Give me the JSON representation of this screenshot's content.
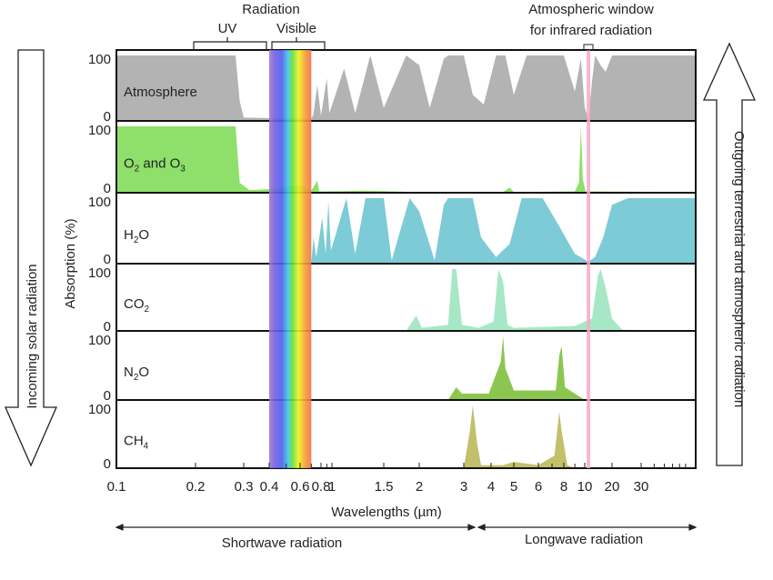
{
  "chart_data": {
    "type": "area",
    "title": "Radiation",
    "xlabel": "Wavelengths (µm)",
    "ylabel": "Absorption (%)",
    "x_scale": "log",
    "x_ticks": [
      "0.1",
      "0.2",
      "0.3",
      "0.4",
      "0.6",
      "0.8",
      "1",
      "1.5",
      "2",
      "3",
      "4",
      "5",
      "6",
      "8",
      "10",
      "20",
      "30"
    ],
    "x_tick_values": [
      0.1,
      0.2,
      0.3,
      0.4,
      0.6,
      0.8,
      1,
      1.5,
      2,
      3,
      4,
      5,
      6,
      8,
      10,
      20,
      30
    ],
    "ylim": [
      0,
      100
    ],
    "y_ticks": [
      "0",
      "100"
    ],
    "bands": {
      "uv": {
        "label": "UV",
        "range": [
          0.2,
          0.4
        ]
      },
      "visible": {
        "label": "Visible",
        "range": [
          0.4,
          0.7
        ]
      },
      "window": {
        "label": "Atmospheric window for infrared radiation",
        "label_line1": "Atmospheric window",
        "label_line2": "for infrared radiation",
        "range": [
          10.5,
          11.5
        ],
        "color": "#f7a8c8"
      }
    },
    "series": [
      {
        "name": "Atmosphere",
        "label_parts": [
          "Atmosphere"
        ],
        "color": "#b3b3b3",
        "points": [
          [
            0.1,
            100
          ],
          [
            0.28,
            100
          ],
          [
            0.29,
            30
          ],
          [
            0.3,
            5
          ],
          [
            0.7,
            3
          ],
          [
            0.72,
            10
          ],
          [
            0.76,
            55
          ],
          [
            0.8,
            8
          ],
          [
            0.9,
            65
          ],
          [
            0.95,
            12
          ],
          [
            1.1,
            80
          ],
          [
            1.2,
            12
          ],
          [
            1.35,
            100
          ],
          [
            1.5,
            20
          ],
          [
            1.8,
            100
          ],
          [
            2.0,
            85
          ],
          [
            2.2,
            20
          ],
          [
            2.5,
            95
          ],
          [
            2.6,
            100
          ],
          [
            3.0,
            100
          ],
          [
            3.3,
            40
          ],
          [
            3.7,
            25
          ],
          [
            4.2,
            100
          ],
          [
            4.6,
            100
          ],
          [
            5.0,
            40
          ],
          [
            5.5,
            100
          ],
          [
            8,
            100
          ],
          [
            9,
            45
          ],
          [
            9.6,
            95
          ],
          [
            10,
            20
          ],
          [
            11,
            3
          ],
          [
            12,
            60
          ],
          [
            13,
            100
          ],
          [
            15,
            85
          ],
          [
            17,
            75
          ],
          [
            20,
            100
          ],
          [
            100,
            100
          ]
        ]
      },
      {
        "name": "O2 and O3",
        "label_parts": [
          "O",
          "2",
          " and O",
          "3"
        ],
        "color": "#8ee06a",
        "points": [
          [
            0.1,
            100
          ],
          [
            0.28,
            100
          ],
          [
            0.29,
            15
          ],
          [
            0.32,
            4
          ],
          [
            0.45,
            6
          ],
          [
            0.6,
            12
          ],
          [
            0.7,
            3
          ],
          [
            0.76,
            18
          ],
          [
            0.78,
            2
          ],
          [
            1.3,
            3
          ],
          [
            2.0,
            1
          ],
          [
            4.5,
            1
          ],
          [
            4.8,
            8
          ],
          [
            5.0,
            1
          ],
          [
            9.0,
            2
          ],
          [
            9.4,
            15
          ],
          [
            9.6,
            100
          ],
          [
            9.8,
            20
          ],
          [
            10.2,
            2
          ],
          [
            100,
            1
          ]
        ]
      },
      {
        "name": "H2O",
        "label_parts": [
          "H",
          "2",
          "O"
        ],
        "color": "#7ccbd7",
        "points": [
          [
            0.7,
            0
          ],
          [
            0.72,
            40
          ],
          [
            0.75,
            10
          ],
          [
            0.82,
            70
          ],
          [
            0.88,
            15
          ],
          [
            0.93,
            95
          ],
          [
            0.98,
            20
          ],
          [
            1.12,
            100
          ],
          [
            1.2,
            15
          ],
          [
            1.3,
            100
          ],
          [
            1.5,
            100
          ],
          [
            1.6,
            5
          ],
          [
            1.85,
            100
          ],
          [
            2.0,
            80
          ],
          [
            2.3,
            5
          ],
          [
            2.5,
            90
          ],
          [
            2.6,
            100
          ],
          [
            3.3,
            100
          ],
          [
            3.6,
            40
          ],
          [
            4.2,
            10
          ],
          [
            4.8,
            30
          ],
          [
            5.3,
            100
          ],
          [
            6.3,
            100
          ],
          [
            7.5,
            60
          ],
          [
            9,
            15
          ],
          [
            11,
            3
          ],
          [
            13,
            10
          ],
          [
            16,
            40
          ],
          [
            20,
            90
          ],
          [
            25,
            100
          ],
          [
            100,
            100
          ]
        ]
      },
      {
        "name": "CO2",
        "label_parts": [
          "CO",
          "2"
        ],
        "color": "#a6e8c6",
        "points": [
          [
            1.8,
            0
          ],
          [
            1.95,
            25
          ],
          [
            2.05,
            5
          ],
          [
            2.6,
            10
          ],
          [
            2.7,
            100
          ],
          [
            2.8,
            100
          ],
          [
            2.95,
            10
          ],
          [
            3.5,
            5
          ],
          [
            4.1,
            15
          ],
          [
            4.3,
            100
          ],
          [
            4.5,
            80
          ],
          [
            4.7,
            10
          ],
          [
            5,
            5
          ],
          [
            9,
            8
          ],
          [
            12,
            20
          ],
          [
            14,
            90
          ],
          [
            15,
            100
          ],
          [
            17,
            70
          ],
          [
            20,
            20
          ],
          [
            23,
            2
          ],
          [
            100,
            0
          ]
        ]
      },
      {
        "name": "N2O",
        "label_parts": [
          "N",
          "2",
          "O"
        ],
        "color": "#8cc650",
        "points": [
          [
            2.6,
            0
          ],
          [
            2.8,
            20
          ],
          [
            2.95,
            10
          ],
          [
            3.9,
            10
          ],
          [
            4.4,
            60
          ],
          [
            4.5,
            100
          ],
          [
            4.6,
            50
          ],
          [
            5.0,
            15
          ],
          [
            7.3,
            15
          ],
          [
            7.6,
            70
          ],
          [
            7.8,
            85
          ],
          [
            8.1,
            20
          ],
          [
            9,
            10
          ],
          [
            10,
            0
          ]
        ]
      },
      {
        "name": "CH4",
        "label_parts": [
          "CH",
          "4"
        ],
        "color": "#c2c06a",
        "points": [
          [
            3.0,
            0
          ],
          [
            3.2,
            60
          ],
          [
            3.3,
            100
          ],
          [
            3.45,
            40
          ],
          [
            3.6,
            5
          ],
          [
            4.5,
            5
          ],
          [
            5,
            10
          ],
          [
            6,
            5
          ],
          [
            7.2,
            20
          ],
          [
            7.6,
            90
          ],
          [
            7.8,
            60
          ],
          [
            8.3,
            5
          ],
          [
            9,
            0
          ]
        ]
      }
    ],
    "annotations": {
      "shortwave": "Shortwave radiation",
      "longwave": "Longwave radiation",
      "incoming": "Incoming solar radiation",
      "outgoing": "Outgoing terrestrial and atmospheric radiation"
    }
  }
}
